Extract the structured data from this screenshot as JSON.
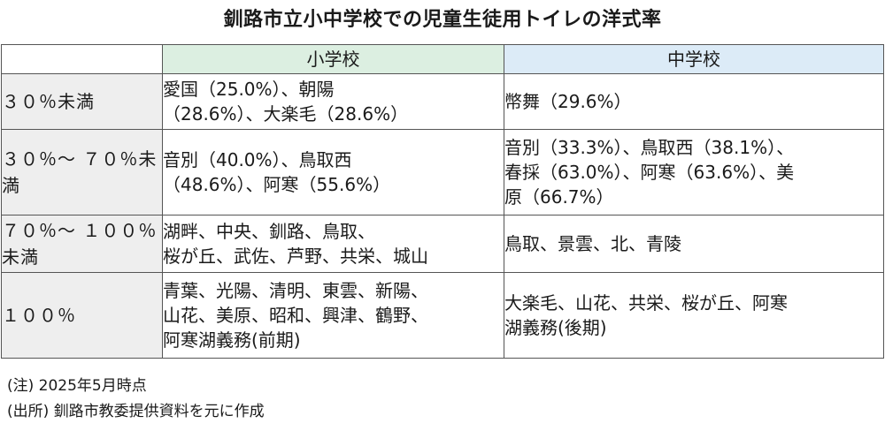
{
  "title": "釧路市立小中学校での児童生徒用トイレの洋式率",
  "table": {
    "columns": {
      "corner": "",
      "elementary": "小学校",
      "middle": "中学校"
    },
    "rows": [
      {
        "label_lines": [
          "３０％未満"
        ],
        "elementary_lines": [
          "愛国（25.0%）、朝陽",
          "（28.6%）、大楽毛（28.6%）"
        ],
        "middle_lines": [
          "幣舞（29.6%）"
        ]
      },
      {
        "label_lines": [
          "３０％～",
          "７０％未満"
        ],
        "elementary_lines": [
          "音別（40.0%）、鳥取西",
          "（48.6%）、阿寒（55.6%）"
        ],
        "middle_lines": [
          "音別（33.3%）、鳥取西（38.1%）、",
          "春採（63.0%）、阿寒（63.6%）、美",
          "原（66.7%）"
        ]
      },
      {
        "label_lines": [
          "７０％～",
          "１００％未満"
        ],
        "elementary_lines": [
          "湖畔、中央、釧路、鳥取、",
          "桜が丘、武佐、芦野、共栄、城山"
        ],
        "middle_lines": [
          "鳥取、景雲、北、青陵"
        ]
      },
      {
        "label_lines": [
          "１００％"
        ],
        "elementary_lines": [
          "青葉、光陽、清明、東雲、新陽、",
          "山花、美原、昭和、興津、鶴野、",
          "阿寒湖義務(前期)"
        ],
        "middle_lines": [
          "大楽毛、山花、共栄、桜が丘、阿寒",
          "湖義務(後期)"
        ]
      }
    ]
  },
  "notes": {
    "note": "(注) 2025年5月時点",
    "source": "(出所) 釧路市教委提供資料を元に作成"
  },
  "colors": {
    "elementary_header_bg": "#dcefe1",
    "middle_header_bg": "#dcebf7",
    "row_label_bg": "#eeeeee",
    "border": "#555555"
  }
}
